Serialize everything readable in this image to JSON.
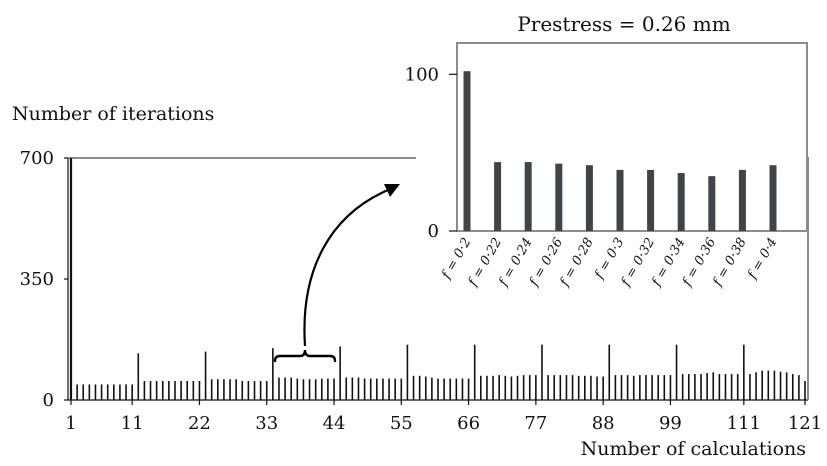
{
  "colors": {
    "main_bar": "#111111",
    "inset_bar": "#3f4448",
    "frame": "#8c8c8c",
    "arrow": "#000000"
  },
  "chart_data": [
    {
      "type": "bar",
      "ylabel": "Number of iterations",
      "xlabel": "Number of calculations",
      "x_ticks": [
        "1",
        "11",
        "22",
        "33",
        "44",
        "55",
        "66",
        "77",
        "88",
        "99",
        "111",
        "121"
      ],
      "y_ticks": [
        "0",
        "350",
        "700"
      ],
      "ylim": [
        0,
        700
      ],
      "xlim": [
        1,
        121
      ],
      "x": [
        1,
        2,
        3,
        4,
        5,
        6,
        7,
        8,
        9,
        10,
        11,
        12,
        13,
        14,
        15,
        16,
        17,
        18,
        19,
        20,
        21,
        22,
        23,
        24,
        25,
        26,
        27,
        28,
        29,
        30,
        31,
        32,
        33,
        34,
        35,
        36,
        37,
        38,
        39,
        40,
        41,
        42,
        43,
        44,
        45,
        46,
        47,
        48,
        49,
        50,
        51,
        52,
        53,
        54,
        55,
        56,
        57,
        58,
        59,
        60,
        61,
        62,
        63,
        64,
        65,
        66,
        67,
        68,
        69,
        70,
        71,
        72,
        73,
        74,
        75,
        76,
        77,
        78,
        79,
        80,
        81,
        82,
        83,
        84,
        85,
        86,
        87,
        88,
        89,
        90,
        91,
        92,
        93,
        94,
        95,
        96,
        97,
        98,
        99,
        100,
        101,
        102,
        103,
        104,
        105,
        106,
        107,
        108,
        109,
        110,
        111,
        112,
        113,
        114,
        115,
        116,
        117,
        118,
        119,
        120,
        121
      ],
      "values": [
        700,
        45,
        45,
        45,
        45,
        45,
        45,
        45,
        45,
        45,
        45,
        135,
        55,
        55,
        55,
        55,
        55,
        55,
        55,
        55,
        55,
        55,
        140,
        60,
        60,
        60,
        60,
        60,
        55,
        55,
        55,
        55,
        55,
        150,
        65,
        65,
        65,
        62,
        60,
        60,
        60,
        62,
        62,
        62,
        155,
        65,
        65,
        65,
        62,
        62,
        62,
        62,
        62,
        62,
        62,
        160,
        70,
        70,
        68,
        65,
        62,
        62,
        62,
        62,
        62,
        62,
        160,
        70,
        70,
        70,
        72,
        70,
        68,
        70,
        72,
        72,
        72,
        160,
        72,
        72,
        72,
        72,
        72,
        70,
        70,
        70,
        68,
        68,
        160,
        72,
        72,
        72,
        70,
        72,
        72,
        72,
        72,
        72,
        72,
        160,
        75,
        75,
        75,
        75,
        78,
        80,
        75,
        75,
        75,
        75,
        160,
        75,
        80,
        85,
        85,
        85,
        82,
        80,
        75,
        72,
        55
      ]
    },
    {
      "type": "bar",
      "title": "Prestress = 0.26 mm",
      "categories": [
        "f = 0·2",
        "f = 0·22",
        "f = 0·24",
        "f = 0·26",
        "f = 0·28",
        "f = 0·3",
        "f = 0·32",
        "f = 0·34",
        "f = 0·36",
        "f = 0·38",
        "f = 0·4"
      ],
      "values": [
        102,
        44,
        44,
        43,
        42,
        39,
        39,
        37,
        35,
        39,
        42
      ],
      "y_ticks": [
        "0",
        "100"
      ],
      "ylim": [
        0,
        120
      ]
    }
  ]
}
